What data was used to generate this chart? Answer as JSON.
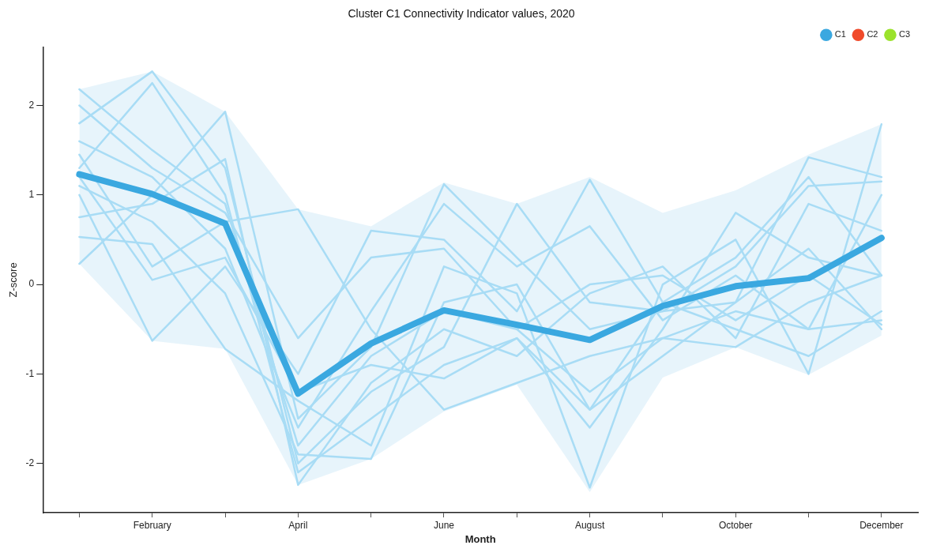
{
  "chart_data": {
    "type": "line",
    "title": "Cluster C1 Connectivity Indicator values, 2020",
    "xlabel": "Month",
    "ylabel": "Z-score",
    "categories": [
      null,
      "February",
      null,
      "April",
      null,
      "June",
      null,
      "August",
      null,
      "October",
      null,
      "December"
    ],
    "ylim": [
      -2.55,
      2.65
    ],
    "yticks": [
      -2,
      -1,
      0,
      1,
      2
    ],
    "grid": false,
    "legend": "top right",
    "marker": "none",
    "line_style": "solid",
    "series": [
      {
        "color": "#a8dcf5",
        "values": [
          2.18,
          1.5,
          0.9,
          -1.8,
          -0.8,
          -0.3,
          -0.5,
          -1.2,
          -0.6,
          -0.3,
          -0.5,
          -0.4
        ]
      },
      {
        "color": "#a8dcf5",
        "values": [
          1.8,
          2.38,
          1.3,
          -2.0,
          -1.2,
          -0.7,
          0.9,
          -0.2,
          -0.3,
          0.2,
          1.1,
          1.15
        ]
      },
      {
        "color": "#a8dcf5",
        "values": [
          1.3,
          2.25,
          1.0,
          -2.1,
          -1.5,
          -0.9,
          -0.6,
          -1.6,
          -0.5,
          0.8,
          0.3,
          0.1
        ]
      },
      {
        "color": "#a8dcf5",
        "values": [
          0.23,
          1.0,
          1.93,
          -1.5,
          -0.7,
          1.12,
          0.3,
          -0.5,
          -0.3,
          -0.2,
          1.42,
          1.2
        ]
      },
      {
        "color": "#a8dcf5",
        "values": [
          1.0,
          -0.63,
          0.2,
          -1.0,
          0.6,
          0.5,
          -0.3,
          1.17,
          -0.2,
          -0.5,
          -0.8,
          -0.3
        ]
      },
      {
        "color": "#a8dcf5",
        "values": [
          0.53,
          0.45,
          -0.72,
          -1.3,
          -1.8,
          0.2,
          -0.1,
          -2.27,
          0.0,
          0.5,
          -1.0,
          1.79
        ]
      },
      {
        "color": "#a8dcf5",
        "values": [
          1.45,
          0.2,
          0.7,
          0.84,
          -0.5,
          -1.4,
          -1.1,
          -0.8,
          -0.6,
          -0.7,
          -0.2,
          0.1
        ]
      },
      {
        "color": "#a8dcf5",
        "values": [
          1.6,
          1.2,
          0.4,
          -1.6,
          -0.3,
          0.9,
          0.2,
          0.65,
          -0.4,
          0.1,
          -0.5,
          1.0
        ]
      },
      {
        "color": "#a8dcf5",
        "values": [
          0.75,
          0.9,
          1.4,
          -2.24,
          -1.1,
          -0.5,
          -0.8,
          -0.1,
          0.2,
          -0.6,
          0.9,
          0.6
        ]
      },
      {
        "color": "#a8dcf5",
        "values": [
          1.1,
          0.7,
          -0.1,
          -1.9,
          -1.95,
          -0.2,
          0.0,
          -1.4,
          -0.8,
          -0.2,
          0.4,
          -0.5
        ]
      },
      {
        "color": "#a8dcf5",
        "values": [
          2.0,
          1.3,
          0.8,
          -0.6,
          0.3,
          0.4,
          -0.5,
          0.0,
          0.1,
          -0.4,
          0.1,
          -0.45
        ]
      },
      {
        "color": "#a8dcf5",
        "values": [
          1.2,
          0.05,
          0.3,
          -1.2,
          -0.9,
          -1.05,
          -0.6,
          -1.4,
          -0.2,
          0.3,
          1.2,
          0.1
        ]
      },
      {
        "name": "C1",
        "color": "#3aa8e0",
        "values": [
          1.23,
          1.01,
          0.68,
          -1.22,
          -0.66,
          -0.29,
          -0.45,
          -0.62,
          -0.24,
          -0.02,
          0.07,
          0.52
        ],
        "lower": [
          0.23,
          -0.63,
          -0.72,
          -2.24,
          -1.95,
          -1.42,
          -1.12,
          -2.32,
          -1.04,
          -0.7,
          -1.01,
          -0.57
        ],
        "upper": [
          2.18,
          2.38,
          1.93,
          0.84,
          0.65,
          1.14,
          0.9,
          1.2,
          0.8,
          1.05,
          1.45,
          1.79
        ]
      },
      {
        "name": "C2",
        "color": "#f04a2a",
        "values": [
          null,
          null,
          null,
          null,
          null,
          null,
          null,
          null,
          null,
          null,
          null,
          null
        ]
      },
      {
        "name": "C3",
        "color": "#9be22c",
        "values": [
          null,
          null,
          null,
          null,
          null,
          null,
          null,
          null,
          null,
          null,
          null,
          null
        ]
      }
    ]
  }
}
